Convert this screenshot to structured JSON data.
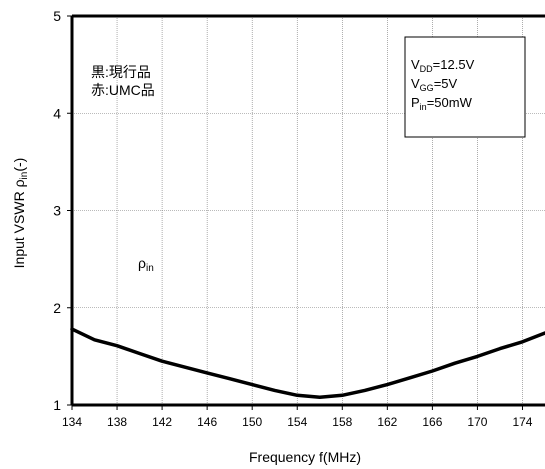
{
  "chart_data": {
    "type": "line",
    "xlabel": "Frequency f(MHz)",
    "ylabel": {
      "prefix": "Input VSWR ρ",
      "sub": "in",
      "suffix": "(-)"
    },
    "xlim": [
      134,
      176
    ],
    "ylim": [
      1,
      5
    ],
    "x_ticks": [
      134,
      138,
      142,
      146,
      150,
      154,
      158,
      162,
      166,
      170,
      174
    ],
    "y_ticks": [
      1,
      2,
      3,
      4,
      5
    ],
    "grid": true,
    "legend_lines": [
      "黒:現行品",
      "赤:UMC品"
    ],
    "conditions": [
      {
        "main": "V",
        "sub": "DD",
        "rest": "=12.5V"
      },
      {
        "main": "V",
        "sub": "GG",
        "rest": "=5V"
      },
      {
        "main": "P",
        "sub": "in",
        "rest": "=50mW"
      }
    ],
    "curve_label": {
      "main": "ρ",
      "sub": "in"
    },
    "series": [
      {
        "color": "#000000",
        "x": [
          134,
          136,
          138,
          140,
          142,
          144,
          146,
          148,
          150,
          152,
          154,
          156,
          158,
          160,
          162,
          164,
          166,
          168,
          170,
          172,
          174,
          176
        ],
        "y": [
          1.78,
          1.67,
          1.61,
          1.53,
          1.45,
          1.39,
          1.33,
          1.27,
          1.21,
          1.15,
          1.1,
          1.08,
          1.1,
          1.15,
          1.21,
          1.28,
          1.35,
          1.43,
          1.5,
          1.58,
          1.65,
          1.74
        ]
      }
    ]
  }
}
